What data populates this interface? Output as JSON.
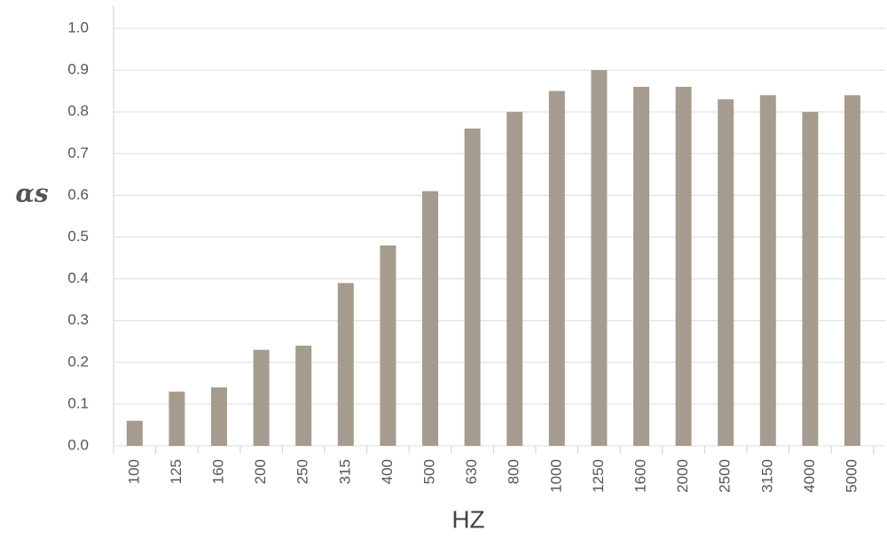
{
  "chart_data": {
    "type": "bar",
    "y_label": "αs",
    "x_label": "HZ",
    "categories": [
      "100",
      "125",
      "160",
      "200",
      "250",
      "315",
      "400",
      "500",
      "630",
      "800",
      "1000",
      "1250",
      "1600",
      "2000",
      "2500",
      "3150",
      "4000",
      "5000"
    ],
    "values": [
      0.06,
      0.13,
      0.14,
      0.23,
      0.24,
      0.39,
      0.48,
      0.61,
      0.76,
      0.8,
      0.85,
      0.9,
      0.86,
      0.86,
      0.83,
      0.84,
      0.8,
      0.84
    ],
    "color": "#a59c8f",
    "ylim": [
      0,
      1
    ],
    "yticks": [
      {
        "value": 0,
        "label": "0.0"
      },
      0.1,
      0.2,
      0.3,
      0.4,
      0.5,
      0.6,
      0.7,
      0.8,
      0.9,
      {
        "value": 1,
        "label": "1.0"
      }
    ],
    "grid": true
  }
}
